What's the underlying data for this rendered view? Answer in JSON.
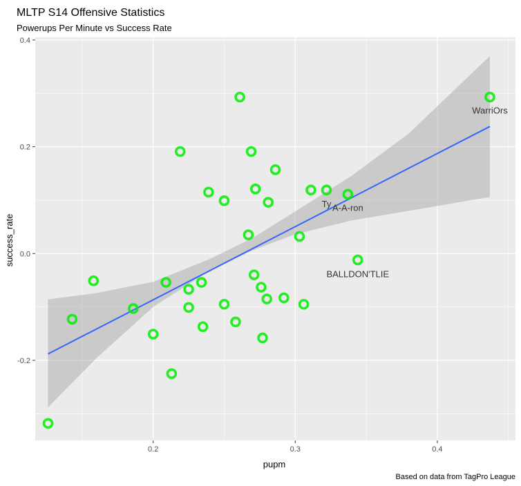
{
  "chart_data": {
    "type": "scatter",
    "title": "MLTP S14 Offensive Statistics",
    "subtitle": "Powerups Per Minute vs Success Rate",
    "xlabel": "pupm",
    "ylabel": "success_rate",
    "caption": "Based on data from TagPro League",
    "xlim": [
      0.117,
      0.455
    ],
    "ylim": [
      -0.35,
      0.405
    ],
    "x_ticks": [
      {
        "value": 0.2,
        "label": "0.2"
      },
      {
        "value": 0.3,
        "label": "0.3"
      },
      {
        "value": 0.4,
        "label": "0.4"
      }
    ],
    "y_ticks": [
      {
        "value": -0.2,
        "label": "-0.2"
      },
      {
        "value": 0.0,
        "label": "0.0"
      },
      {
        "value": 0.2,
        "label": "0.2"
      },
      {
        "value": 0.4,
        "label": "0.4"
      }
    ],
    "grid": true,
    "point_color": "#00ee00",
    "trend_color": "#3366ff",
    "band_color": "#999999",
    "panel_color": "#ebebeb",
    "points": [
      {
        "x": 0.126,
        "y": -0.318
      },
      {
        "x": 0.143,
        "y": -0.123
      },
      {
        "x": 0.158,
        "y": -0.051
      },
      {
        "x": 0.186,
        "y": -0.103
      },
      {
        "x": 0.2,
        "y": -0.151
      },
      {
        "x": 0.209,
        "y": -0.054
      },
      {
        "x": 0.213,
        "y": -0.225
      },
      {
        "x": 0.219,
        "y": 0.191
      },
      {
        "x": 0.225,
        "y": -0.067
      },
      {
        "x": 0.225,
        "y": -0.101
      },
      {
        "x": 0.234,
        "y": -0.054
      },
      {
        "x": 0.235,
        "y": -0.137
      },
      {
        "x": 0.239,
        "y": 0.115
      },
      {
        "x": 0.25,
        "y": -0.095
      },
      {
        "x": 0.25,
        "y": 0.099
      },
      {
        "x": 0.258,
        "y": -0.128
      },
      {
        "x": 0.261,
        "y": 0.293
      },
      {
        "x": 0.267,
        "y": 0.035
      },
      {
        "x": 0.269,
        "y": 0.191
      },
      {
        "x": 0.271,
        "y": -0.04
      },
      {
        "x": 0.272,
        "y": 0.121
      },
      {
        "x": 0.276,
        "y": -0.063
      },
      {
        "x": 0.277,
        "y": -0.158
      },
      {
        "x": 0.28,
        "y": -0.085
      },
      {
        "x": 0.281,
        "y": 0.096
      },
      {
        "x": 0.286,
        "y": 0.157
      },
      {
        "x": 0.292,
        "y": -0.083
      },
      {
        "x": 0.303,
        "y": 0.032
      },
      {
        "x": 0.306,
        "y": -0.095
      },
      {
        "x": 0.311,
        "y": 0.119
      },
      {
        "x": 0.322,
        "y": 0.119
      },
      {
        "x": 0.337,
        "y": 0.111
      },
      {
        "x": 0.344,
        "y": -0.012
      },
      {
        "x": 0.437,
        "y": 0.293
      }
    ],
    "labels": [
      {
        "text": "WarriOrs",
        "x": 0.437,
        "y": 0.267
      },
      {
        "text": "Ty",
        "x": 0.322,
        "y": 0.092
      },
      {
        "text": "A-A-ron",
        "x": 0.337,
        "y": 0.085
      },
      {
        "text": "BALLDON'TLIE",
        "x": 0.344,
        "y": -0.039
      }
    ],
    "trend_line": {
      "x": [
        0.126,
        0.437
      ],
      "y": [
        -0.188,
        0.238
      ]
    },
    "confidence_band": {
      "x": [
        0.126,
        0.16,
        0.2,
        0.24,
        0.27,
        0.3,
        0.34,
        0.38,
        0.437
      ],
      "lower": [
        -0.288,
        -0.196,
        -0.1,
        -0.032,
        0.006,
        0.036,
        0.062,
        0.08,
        0.106
      ],
      "upper": [
        -0.086,
        -0.074,
        -0.053,
        -0.01,
        0.029,
        0.079,
        0.146,
        0.225,
        0.37
      ]
    }
  }
}
